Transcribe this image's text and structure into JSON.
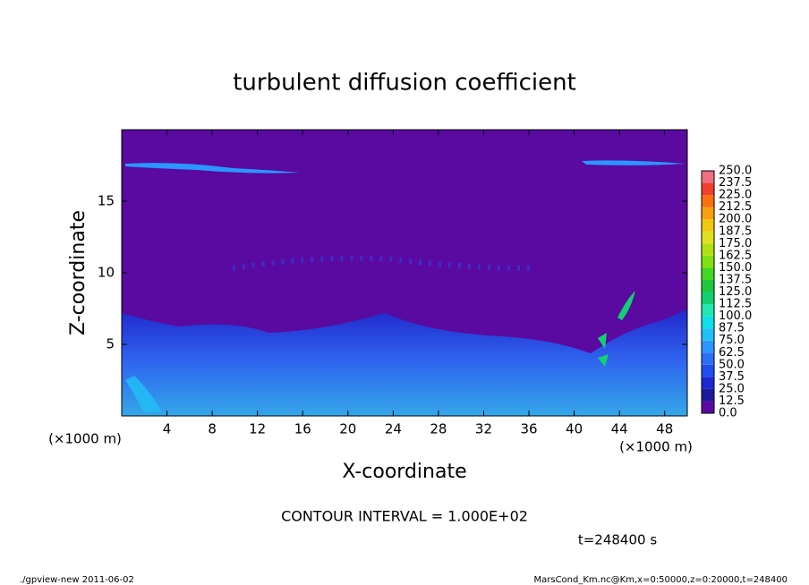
{
  "chart_data": {
    "type": "contour",
    "title": "turbulent diffusion coefficient",
    "x_label": "X-coordinate",
    "y_label": "Z-coordinate",
    "x_unit_left": "(×1000 m)",
    "x_unit_right": "(×1000 m)",
    "contour_interval": "CONTOUR INTERVAL = 1.000E+02",
    "time_label": "t=248400 s",
    "footer_left": "./gpview-new  2011-06-02",
    "footer_right": "MarsCond_Km.nc@Km,x=0:50000,z=0:20000,t=248400",
    "xlim": [
      0,
      50
    ],
    "ylim": [
      0,
      20
    ],
    "xticks": [
      4,
      8,
      12,
      16,
      20,
      24,
      28,
      32,
      36,
      40,
      44,
      48
    ],
    "yticks": [
      5,
      10,
      15
    ],
    "colorbar": {
      "levels": [
        {
          "value": 0,
          "label": "0.0"
        },
        {
          "value": 12.5,
          "label": "12.5"
        },
        {
          "value": 25,
          "label": "25.0"
        },
        {
          "value": 37.5,
          "label": "37.5"
        },
        {
          "value": 50,
          "label": "50.0"
        },
        {
          "value": 62.5,
          "label": "62.5"
        },
        {
          "value": 75,
          "label": "75.0"
        },
        {
          "value": 87.5,
          "label": "87.5"
        },
        {
          "value": 100,
          "label": "100.0"
        },
        {
          "value": 112.5,
          "label": "112.5"
        },
        {
          "value": 125,
          "label": "125.0"
        },
        {
          "value": 137.5,
          "label": "137.5"
        },
        {
          "value": 150,
          "label": "150.0"
        },
        {
          "value": 162.5,
          "label": "162.5"
        },
        {
          "value": 175,
          "label": "175.0"
        },
        {
          "value": 187.5,
          "label": "187.5"
        },
        {
          "value": 200,
          "label": "200.0"
        },
        {
          "value": 212.5,
          "label": "212.5"
        },
        {
          "value": 225,
          "label": "225.0"
        },
        {
          "value": 237.5,
          "label": "237.5"
        },
        {
          "value": 250,
          "label": "250.0"
        }
      ],
      "colors": [
        "#5a0aa0",
        "#1c1a9c",
        "#1a2ad0",
        "#1e4ef0",
        "#2a70f8",
        "#2a96ff",
        "#20c0f8",
        "#10e0e8",
        "#20e8b0",
        "#10d070",
        "#20c840",
        "#40d820",
        "#80e010",
        "#b0e010",
        "#e0e020",
        "#f0c810",
        "#f8a010",
        "#f87010",
        "#f04030",
        "#f07080"
      ]
    }
  }
}
